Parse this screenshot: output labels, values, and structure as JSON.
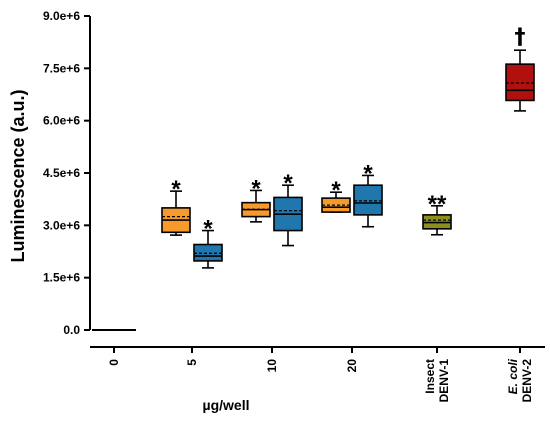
{
  "chart_data": {
    "type": "box",
    "ylabel": "Luminescence (a.u.)",
    "xlabel": "µg/well",
    "ylim": [
      0,
      9000000
    ],
    "y_ticks": [
      "0.0",
      "1.5e+6",
      "3.0e+6",
      "4.5e+6",
      "6.0e+6",
      "7.5e+6",
      "9.0e+6"
    ],
    "y_tick_values": [
      0,
      1500000,
      3000000,
      4500000,
      6000000,
      7500000,
      9000000
    ],
    "categories": [
      {
        "key": "0",
        "lines": [
          "0"
        ],
        "italic_first": false
      },
      {
        "key": "5",
        "lines": [
          "5"
        ],
        "italic_first": false
      },
      {
        "key": "10",
        "lines": [
          "10"
        ],
        "italic_first": false
      },
      {
        "key": "20",
        "lines": [
          "20"
        ],
        "italic_first": false
      },
      {
        "key": "insect",
        "lines": [
          "Insect",
          "DENV-1"
        ],
        "italic_first": false
      },
      {
        "key": "ecoli",
        "lines": [
          "E. coli",
          "DENV-2"
        ],
        "italic_first": true
      }
    ],
    "colors": {
      "orange": "#F79A2E",
      "blue": "#1F77AE",
      "olive": "#8C8F1E",
      "red": "#B0100E"
    },
    "boxes": [
      {
        "category": "0",
        "color": "none",
        "flat": true,
        "median": 0,
        "sig": ""
      },
      {
        "category": "5",
        "color": "orange",
        "slot": -1,
        "min": 2720000,
        "q1": 2800000,
        "median": 3150000,
        "mean": 3250000,
        "q3": 3500000,
        "max": 3980000,
        "sig": "*"
      },
      {
        "category": "5",
        "color": "blue",
        "slot": 1,
        "min": 1780000,
        "q1": 1980000,
        "median": 2120000,
        "mean": 2200000,
        "q3": 2450000,
        "max": 2850000,
        "sig": "*"
      },
      {
        "category": "10",
        "color": "orange",
        "slot": -1,
        "min": 3100000,
        "q1": 3250000,
        "median": 3450000,
        "mean": 3460000,
        "q3": 3650000,
        "max": 4000000,
        "sig": "*"
      },
      {
        "category": "10",
        "color": "blue",
        "slot": 1,
        "min": 2420000,
        "q1": 2850000,
        "median": 3320000,
        "mean": 3420000,
        "q3": 3800000,
        "max": 4150000,
        "sig": "*"
      },
      {
        "category": "20",
        "color": "orange",
        "slot": -1,
        "min": 3380000,
        "q1": 3380000,
        "median": 3520000,
        "mean": 3580000,
        "q3": 3780000,
        "max": 3950000,
        "sig": "*"
      },
      {
        "category": "20",
        "color": "blue",
        "slot": 1,
        "min": 2960000,
        "q1": 3300000,
        "median": 3640000,
        "mean": 3700000,
        "q3": 4150000,
        "max": 4430000,
        "sig": "*"
      },
      {
        "category": "insect",
        "color": "olive",
        "slot": 0,
        "min": 2730000,
        "q1": 2900000,
        "median": 3080000,
        "mean": 3150000,
        "q3": 3300000,
        "max": 3560000,
        "sig": "**"
      },
      {
        "category": "ecoli",
        "color": "red",
        "slot": 0,
        "min": 6280000,
        "q1": 6580000,
        "median": 6870000,
        "mean": 7080000,
        "q3": 7620000,
        "max": 8020000,
        "sig": "†"
      }
    ]
  }
}
